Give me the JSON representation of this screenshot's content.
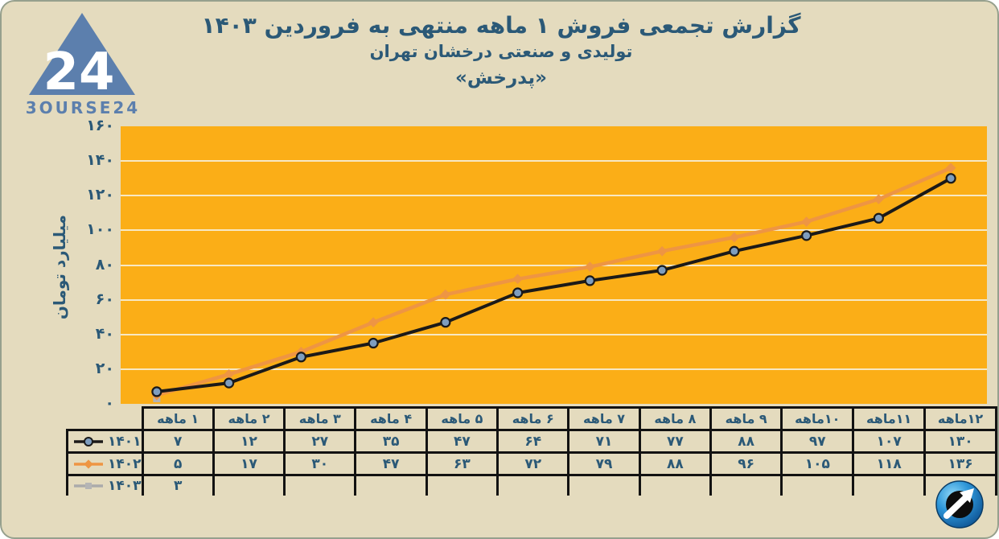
{
  "branding": {
    "logo_number": "24",
    "logo_text": "3OURSE24",
    "logo_color": "#5C7FAD"
  },
  "header": {
    "title": "گزارش تجمعی فروش ۱ ماهه منتهی به فروردین ۱۴۰۳",
    "subtitle": "تولیدی و صنعتی درخشان تهران",
    "symbol": "«پدرخش»",
    "text_color": "#2B5977"
  },
  "chart_data": {
    "type": "line",
    "title": "گزارش تجمعی فروش ۱ ماهه منتهی به فروردین ۱۴۰۳",
    "ylabel": "میلیارد تومان",
    "ylim": [
      0,
      160
    ],
    "ytick_step": 20,
    "grid": true,
    "plot_bg": "#FBAE17",
    "gridline_color": "#F6F2E2",
    "legend_position": "table-left",
    "digits": "persian",
    "categories": [
      "۱ ماهه",
      "۲ ماهه",
      "۳ ماهه",
      "۴ ماهه",
      "۵ ماهه",
      "۶ ماهه",
      "۷ ماهه",
      "۸ ماهه",
      "۹ ماهه",
      "۱۰ماهه",
      "۱۱ماهه",
      "۱۲ماهه"
    ],
    "series": [
      {
        "name": "۱۴۰۱",
        "color": "#1C1A18",
        "marker": "circle",
        "marker_fill": "#7E9DBE",
        "values": [
          7,
          12,
          27,
          35,
          47,
          64,
          71,
          77,
          88,
          97,
          107,
          130
        ]
      },
      {
        "name": "۱۴۰۲",
        "color": "#EE9543",
        "marker": "diamond",
        "marker_fill": "#EE9543",
        "values": [
          5,
          17,
          30,
          47,
          63,
          72,
          79,
          88,
          96,
          105,
          118,
          136
        ]
      },
      {
        "name": "۱۴۰۳",
        "color": "#ABABAB",
        "marker": "square",
        "marker_fill": "#B5B5B5",
        "values": [
          3
        ]
      }
    ]
  }
}
